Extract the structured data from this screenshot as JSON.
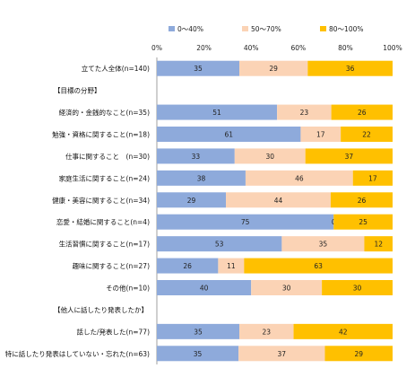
{
  "chart_data": {
    "type": "bar",
    "stacked": "100%",
    "orientation": "horizontal",
    "xlim": [
      0,
      100
    ],
    "x_ticks": [
      "0%",
      "20%",
      "40%",
      "60%",
      "80%",
      "100%"
    ],
    "legend_position": "top",
    "series": [
      {
        "name": "0～40%",
        "color": "#8eaadb"
      },
      {
        "name": "50～70%",
        "color": "#fbd3b5"
      },
      {
        "name": "80～100%",
        "color": "#ffc000"
      }
    ],
    "rows": [
      {
        "label": "立てた人全体(n=140)",
        "values": [
          35,
          29,
          36
        ]
      },
      {
        "label": "【目標の分野】",
        "values": null
      },
      {
        "label": "経済的・金銭的なこと(n=35)",
        "values": [
          51,
          23,
          26
        ]
      },
      {
        "label": "勉強・資格に関すること(n=18)",
        "values": [
          61,
          17,
          22
        ]
      },
      {
        "label": "仕事に関すること　(n=30)",
        "values": [
          33,
          30,
          37
        ]
      },
      {
        "label": "家庭生活に関すること(n=24)",
        "values": [
          38,
          46,
          17
        ]
      },
      {
        "label": "健康・美容に関すること(n=34)",
        "values": [
          29,
          44,
          26
        ]
      },
      {
        "label": "恋愛・結婚に関すること(n=4)",
        "values": [
          75,
          0,
          25
        ]
      },
      {
        "label": "生活習慣に関すること(n=17)",
        "values": [
          53,
          35,
          12
        ]
      },
      {
        "label": "趣味に関すること(n=27)",
        "values": [
          26,
          11,
          63
        ]
      },
      {
        "label": "その他(n=10)",
        "values": [
          40,
          30,
          30
        ]
      },
      {
        "label": "【他人に話したり発表したか】",
        "values": null
      },
      {
        "label": "話した/発表した(n=77)",
        "values": [
          35,
          23,
          42
        ]
      },
      {
        "label": "特に話したり発表はしていない・忘れた(n=63)",
        "values": [
          35,
          37,
          29
        ]
      }
    ]
  }
}
